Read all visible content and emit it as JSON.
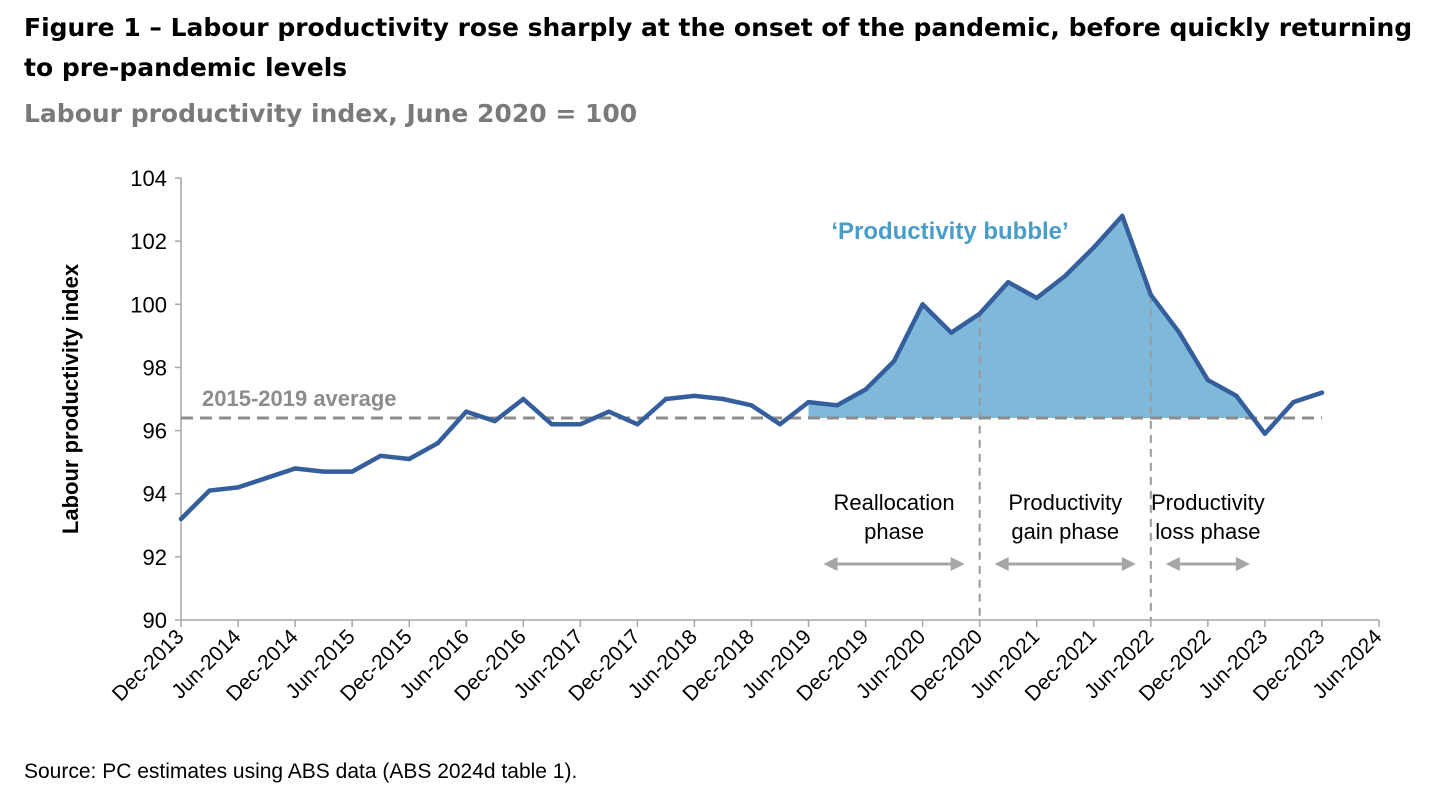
{
  "figure": {
    "title": "Figure 1 – Labour productivity rose sharply at the onset of the pandemic, before quickly returning to pre-pandemic levels",
    "subtitle": "Labour productivity index, June 2020 = 100",
    "source": "Source: PC estimates using ABS data (ABS 2024d table 1)."
  },
  "chart_data": {
    "type": "line",
    "ylabel": "Labour productivity index",
    "ylim": [
      90,
      104
    ],
    "yticks": [
      90,
      92,
      94,
      96,
      98,
      100,
      102,
      104
    ],
    "xtick_labels": [
      "Dec-2013",
      "Jun-2014",
      "Dec-2014",
      "Jun-2015",
      "Dec-2015",
      "Jun-2016",
      "Dec-2016",
      "Jun-2017",
      "Dec-2017",
      "Jun-2018",
      "Dec-2018",
      "Jun-2019",
      "Dec-2019",
      "Jun-2020",
      "Dec-2020",
      "Jun-2021",
      "Dec-2021",
      "Jun-2022",
      "Dec-2022",
      "Jun-2023",
      "Dec-2023",
      "Jun-2024"
    ],
    "series": [
      {
        "name": "",
        "color": "#355f9c",
        "x": [
          "Dec-2013",
          "Mar-2014",
          "Jun-2014",
          "Sep-2014",
          "Dec-2014",
          "Mar-2015",
          "Jun-2015",
          "Sep-2015",
          "Dec-2015",
          "Mar-2016",
          "Jun-2016",
          "Sep-2016",
          "Dec-2016",
          "Mar-2017",
          "Jun-2017",
          "Sep-2017",
          "Dec-2017",
          "Mar-2018",
          "Jun-2018",
          "Sep-2018",
          "Dec-2018",
          "Mar-2019",
          "Jun-2019",
          "Sep-2019",
          "Dec-2019",
          "Mar-2020",
          "Jun-2020",
          "Sep-2020",
          "Dec-2020",
          "Mar-2021",
          "Jun-2021",
          "Sep-2021",
          "Dec-2021",
          "Mar-2022",
          "Jun-2022",
          "Sep-2022",
          "Dec-2022",
          "Mar-2023",
          "Jun-2023",
          "Sep-2023",
          "Dec-2023"
        ],
        "values": [
          93.2,
          94.1,
          94.2,
          94.5,
          94.8,
          94.7,
          94.7,
          95.2,
          95.1,
          95.6,
          96.6,
          96.3,
          97.0,
          96.2,
          96.2,
          96.6,
          96.2,
          97.0,
          97.1,
          97.0,
          96.8,
          96.2,
          96.9,
          96.8,
          97.3,
          98.2,
          100.0,
          99.1,
          99.7,
          100.7,
          100.2,
          100.9,
          101.8,
          102.8,
          100.3,
          99.1,
          97.6,
          97.1,
          95.9,
          96.9,
          97.2
        ]
      }
    ],
    "reference_line": {
      "label": "2015-2019 average",
      "value": 96.4,
      "color": "#8c8c8c"
    },
    "shaded_region": {
      "label": "‘Productivity bubble’",
      "color": "#7eb9da",
      "label_color": "#4a9cc9",
      "from": "Jun-2019",
      "to": "Jun-2023"
    },
    "phase_dividers": [
      "Dec-2020",
      "Jun-2022"
    ],
    "phases": [
      {
        "label_line1": "Reallocation",
        "label_line2": "phase",
        "from": "Jun-2019",
        "to": "Dec-2020"
      },
      {
        "label_line1": "Productivity",
        "label_line2": "gain phase",
        "from": "Dec-2020",
        "to": "Jun-2022"
      },
      {
        "label_line1": "Productivity",
        "label_line2": "loss phase",
        "from": "Jun-2022",
        "to": "Jun-2023"
      }
    ],
    "grid": false,
    "legend": "none"
  }
}
